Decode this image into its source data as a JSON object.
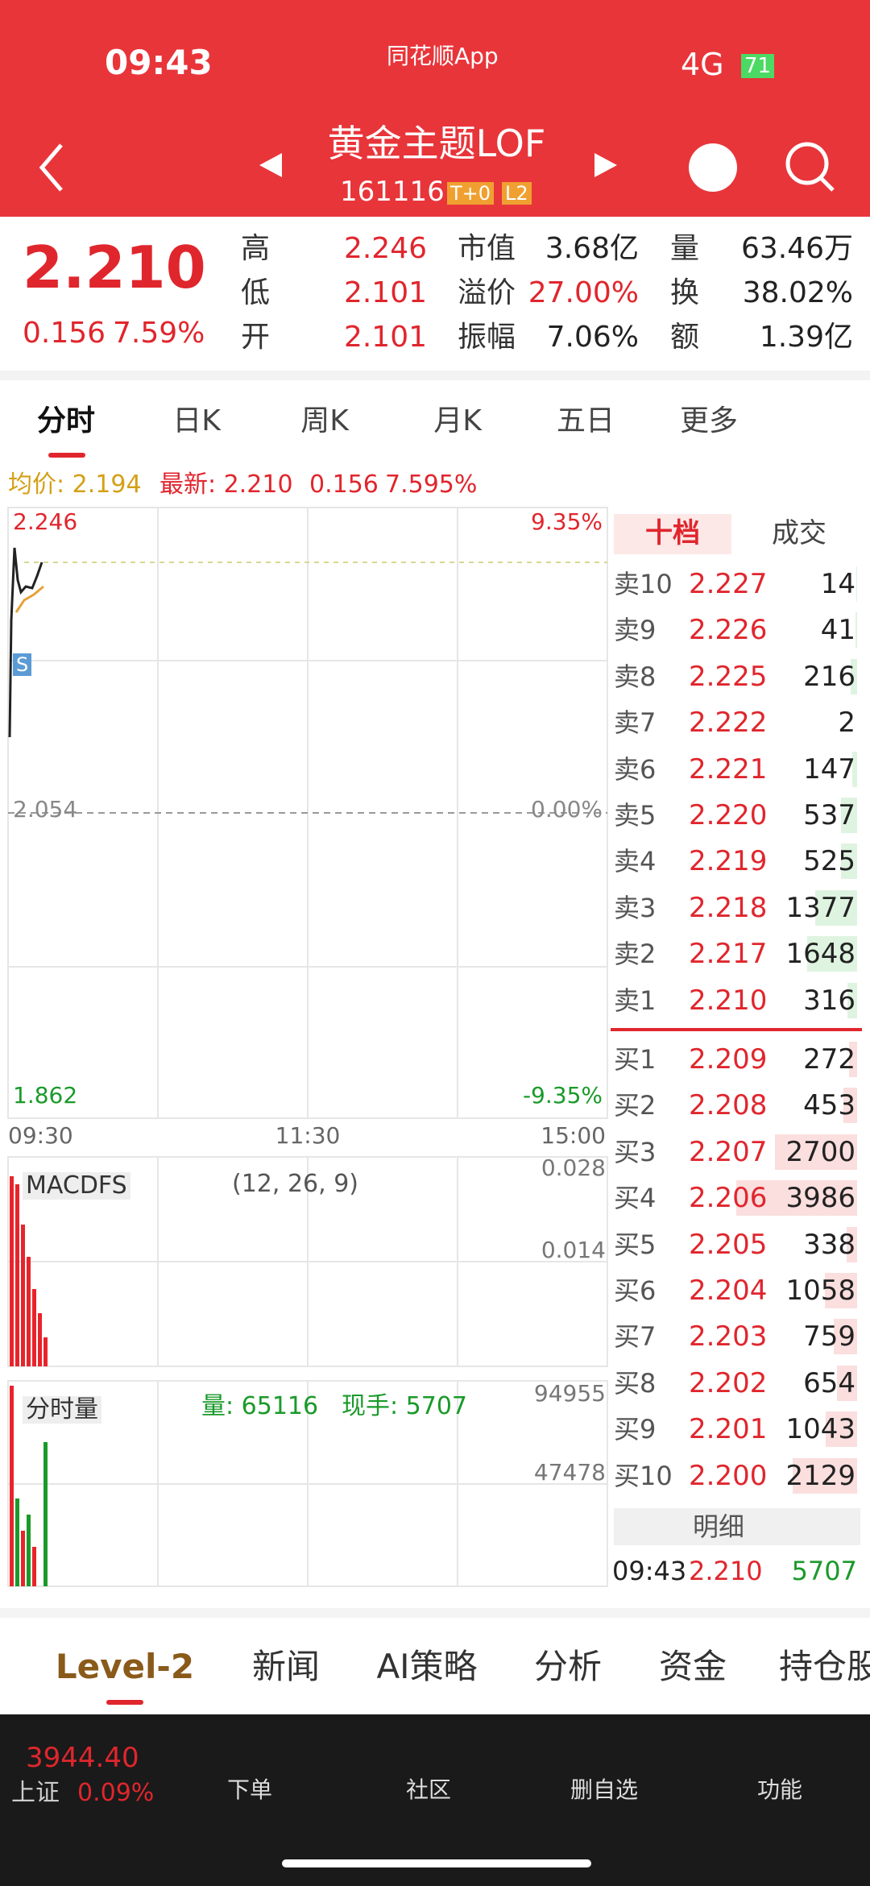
{
  "status": {
    "time": "09:43",
    "app": "同花顺App",
    "network": "4G",
    "battery": "71"
  },
  "header": {
    "title": "黄金主题LOF",
    "code": "161116",
    "tags": [
      "T+0",
      "L2"
    ]
  },
  "quote": {
    "price": "2.210",
    "change": "0.156",
    "percent": "7.59%",
    "stats": [
      [
        "高",
        "2.246"
      ],
      [
        "市值",
        "3.68亿"
      ],
      [
        "量",
        "63.46万"
      ],
      [
        "低",
        "2.101"
      ],
      [
        "溢价",
        "27.00%"
      ],
      [
        "换",
        "38.02%"
      ],
      [
        "开",
        "2.101"
      ],
      [
        "振幅",
        "7.06%"
      ],
      [
        "额",
        "1.39亿"
      ]
    ]
  },
  "tabs": [
    "分时",
    "日K",
    "周K",
    "月K",
    "五日",
    "更多"
  ],
  "info": {
    "avg": "均价: 2.194",
    "latest": "最新: 2.210",
    "change": "0.156",
    "percent": "7.595%"
  },
  "chart": {
    "left_labels": [
      "2.246",
      "2.054",
      "1.862"
    ],
    "right_labels": [
      "9.35%",
      "0.00%",
      "-9.35%"
    ],
    "times": [
      "09:30",
      "11:30",
      "15:00"
    ],
    "marker": "S"
  },
  "macd": {
    "name": "MACDFS",
    "params": "(12, 26, 9)",
    "scale": [
      "0.028",
      "0.014"
    ]
  },
  "volume": {
    "name": "分时量",
    "amount": "量: 65116",
    "hand": "现手: 5707",
    "scale": [
      "94955",
      "47478"
    ]
  },
  "orderbook": {
    "tabs": [
      "十档",
      "成交"
    ],
    "sells": [
      [
        "卖10",
        "2.227",
        14
      ],
      [
        "卖9",
        "2.226",
        41
      ],
      [
        "卖8",
        "2.225",
        216
      ],
      [
        "卖7",
        "2.222",
        2
      ],
      [
        "卖6",
        "2.221",
        147
      ],
      [
        "卖5",
        "2.220",
        537
      ],
      [
        "卖4",
        "2.219",
        525
      ],
      [
        "卖3",
        "2.218",
        1377
      ],
      [
        "卖2",
        "2.217",
        1648
      ],
      [
        "卖1",
        "2.210",
        316
      ]
    ],
    "buys": [
      [
        "买1",
        "2.209",
        272
      ],
      [
        "买2",
        "2.208",
        453
      ],
      [
        "买3",
        "2.207",
        2700
      ],
      [
        "买4",
        "2.206",
        3986
      ],
      [
        "买5",
        "2.205",
        338
      ],
      [
        "买6",
        "2.204",
        1058
      ],
      [
        "买7",
        "2.203",
        759
      ],
      [
        "买8",
        "2.202",
        654
      ],
      [
        "买9",
        "2.201",
        1043
      ],
      [
        "买10",
        "2.200",
        2129
      ]
    ],
    "detail": "明细",
    "last": [
      "09:43",
      "2.210",
      "5707"
    ]
  },
  "bottom_tabs": [
    "Level-2",
    "新闻",
    "AI策略",
    "分析",
    "资金",
    "持仓股"
  ],
  "nav": {
    "index_value": "3944.40",
    "index_name": "上证",
    "index_change": "0.09%",
    "items": [
      "下单",
      "社区",
      "删自选",
      "功能"
    ]
  }
}
